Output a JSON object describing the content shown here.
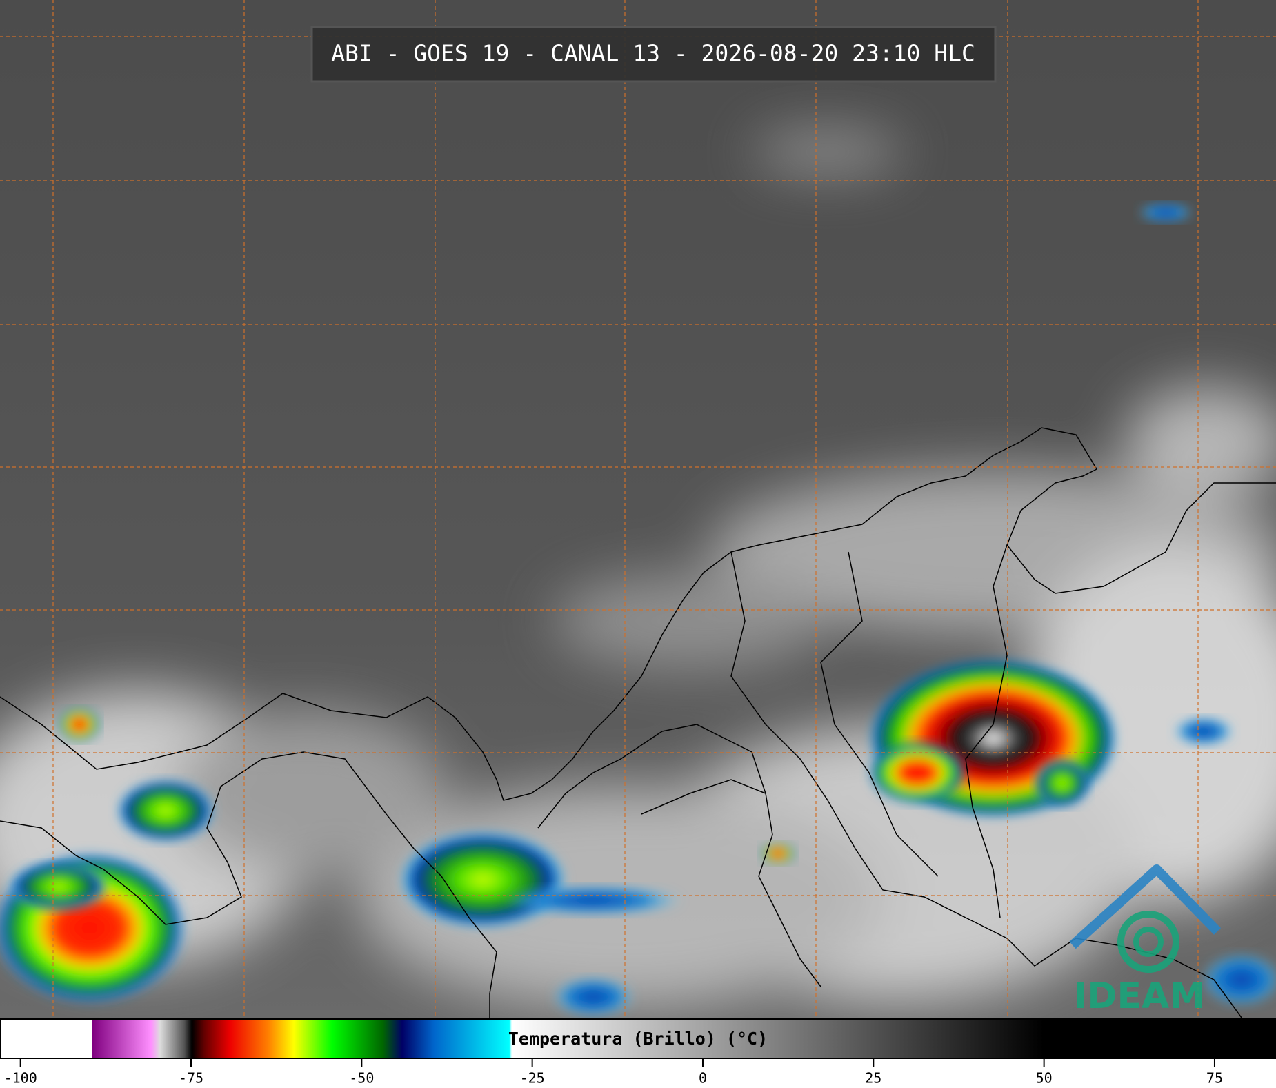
{
  "title": "ABI - GOES 19 - CANAL 13 - 2026-08-20 23:10 HLC",
  "colorbar": {
    "label": "Temperatura (Brillo) (°C)",
    "range": [
      -103,
      84
    ],
    "ticks": [
      -100,
      -75,
      -50,
      -25,
      0,
      25,
      50,
      75
    ]
  },
  "logo": "IDEAM"
}
